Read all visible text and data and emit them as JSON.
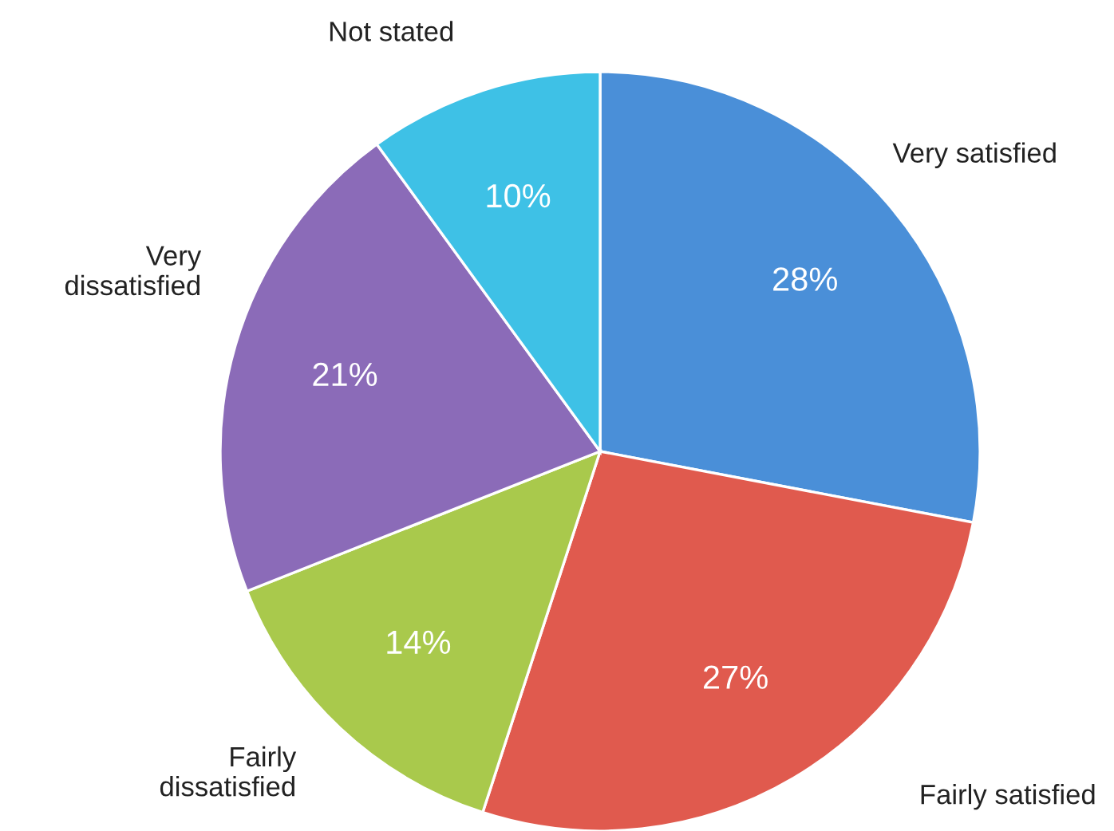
{
  "chart_data": {
    "type": "pie",
    "categories": [
      "Very satisfied",
      "Fairly satisfied",
      "Fairly\ndissatisfied",
      "Very\ndissatisfied",
      "Not stated"
    ],
    "values": [
      28,
      27,
      14,
      21,
      10
    ],
    "value_labels": [
      "28%",
      "27%",
      "14%",
      "21%",
      "10%"
    ],
    "colors": [
      "#4a8fd8",
      "#e05a4e",
      "#a9c94c",
      "#8b6bb8",
      "#3ec1e6"
    ],
    "legend": false
  }
}
